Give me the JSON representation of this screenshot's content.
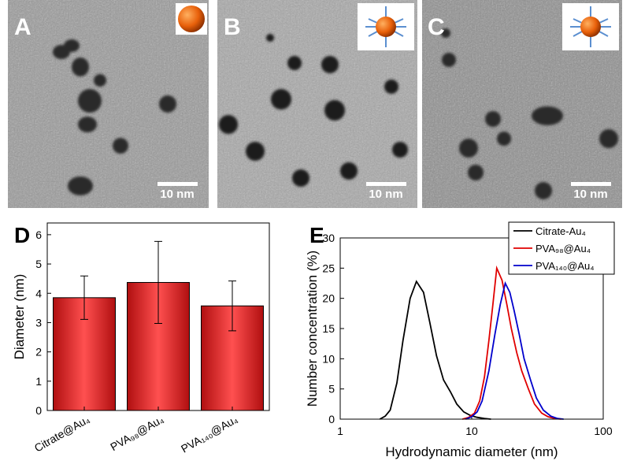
{
  "images": [
    {
      "label": "A",
      "scale_bar": "10 nm"
    },
    {
      "label": "B",
      "scale_bar": "10 nm"
    },
    {
      "label": "C",
      "scale_bar": "10 nm"
    }
  ],
  "chart_data": [
    {
      "type": "bar",
      "panel": "D",
      "ylabel": "Diameter (nm)",
      "categories": [
        "Citrate@Au₄",
        "PVA₉₈@Au₄",
        "PVA₁₄₀@Au₄"
      ],
      "values": [
        3.85,
        4.37,
        3.57
      ],
      "errors": [
        0.74,
        1.4,
        0.85
      ],
      "color": "#e8282a",
      "ylim": [
        0,
        6.4
      ],
      "yticks": [
        0,
        1,
        2,
        3,
        4,
        5,
        6
      ]
    },
    {
      "type": "line",
      "panel": "E",
      "xlabel": "Hydrodynamic diameter (nm)",
      "ylabel": "Number concentration (%)",
      "log_x": true,
      "xlim": [
        1,
        100
      ],
      "xticks": [
        1,
        10,
        100
      ],
      "ylim": [
        0,
        30
      ],
      "yticks": [
        0,
        5,
        10,
        15,
        20,
        25,
        30
      ],
      "legend": "top-right",
      "series": [
        {
          "name": "Citrate-Au₄",
          "color": "#000000",
          "x": [
            2.0,
            2.2,
            2.4,
            2.7,
            3.0,
            3.4,
            3.8,
            4.3,
            4.8,
            5.4,
            6.1,
            6.9,
            7.7,
            8.7,
            9.8,
            11,
            12.5,
            14
          ],
          "values": [
            0,
            0.5,
            1.5,
            6,
            13,
            20,
            22.8,
            21,
            16,
            10.5,
            6.5,
            4.5,
            2.5,
            1.2,
            0.6,
            0.3,
            0.1,
            0
          ]
        },
        {
          "name": "PVA₉₈@Au₄",
          "color": "#e00000",
          "x": [
            8.5,
            9.5,
            10.5,
            11.5,
            12.5,
            13.5,
            14.5,
            15.5,
            17,
            18.5,
            20,
            22,
            24,
            27,
            30,
            34,
            38,
            43,
            48
          ],
          "values": [
            0,
            0.3,
            1,
            3,
            7,
            13,
            19,
            25,
            23,
            19,
            15,
            11,
            8,
            5,
            2.5,
            1,
            0.4,
            0.1,
            0
          ]
        },
        {
          "name": "PVA₁₄₀@Au₄",
          "color": "#0000cc",
          "x": [
            9,
            10,
            11,
            12,
            13.5,
            15,
            16.5,
            18,
            19.5,
            21,
            23,
            25,
            28,
            31,
            35,
            40,
            45,
            50
          ],
          "values": [
            0,
            0.4,
            1.2,
            3,
            8,
            14,
            19,
            22.5,
            21,
            18,
            14,
            10,
            6.5,
            3.5,
            1.5,
            0.5,
            0.1,
            0
          ]
        }
      ]
    }
  ]
}
